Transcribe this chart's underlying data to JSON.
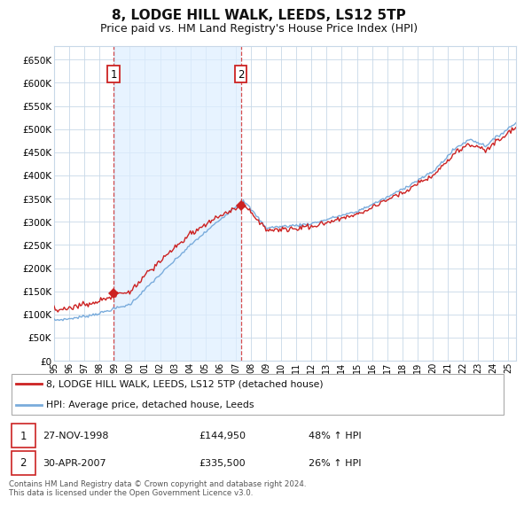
{
  "title": "8, LODGE HILL WALK, LEEDS, LS12 5TP",
  "subtitle": "Price paid vs. HM Land Registry's House Price Index (HPI)",
  "title_fontsize": 11,
  "subtitle_fontsize": 9,
  "bg_color": "#ffffff",
  "plot_bg_color": "#ffffff",
  "grid_color": "#c8d8e8",
  "ylabel_ticks": [
    0,
    50000,
    100000,
    150000,
    200000,
    250000,
    300000,
    350000,
    400000,
    450000,
    500000,
    550000,
    600000,
    650000
  ],
  "ylabel_labels": [
    "£0",
    "£50K",
    "£100K",
    "£150K",
    "£200K",
    "£250K",
    "£300K",
    "£350K",
    "£400K",
    "£450K",
    "£500K",
    "£550K",
    "£600K",
    "£650K"
  ],
  "ylim": [
    0,
    680000
  ],
  "xlim_start": 1995.0,
  "xlim_end": 2025.5,
  "sale1_date": 1998.92,
  "sale1_price": 144950,
  "sale1_label": "1",
  "sale1_date_str": "27-NOV-1998",
  "sale1_price_str": "£144,950",
  "sale1_hpi_str": "48% ↑ HPI",
  "sale2_date": 2007.33,
  "sale2_price": 335500,
  "sale2_label": "2",
  "sale2_date_str": "30-APR-2007",
  "sale2_price_str": "£335,500",
  "sale2_hpi_str": "26% ↑ HPI",
  "red_line_color": "#cc2222",
  "blue_line_color": "#7aacdc",
  "shade_color": "#ddeeff",
  "marker_color": "#cc2222",
  "legend_label_red": "8, LODGE HILL WALK, LEEDS, LS12 5TP (detached house)",
  "legend_label_blue": "HPI: Average price, detached house, Leeds",
  "footer_text": "Contains HM Land Registry data © Crown copyright and database right 2024.\nThis data is licensed under the Open Government Licence v3.0.",
  "dashed_line_color": "#cc2222"
}
